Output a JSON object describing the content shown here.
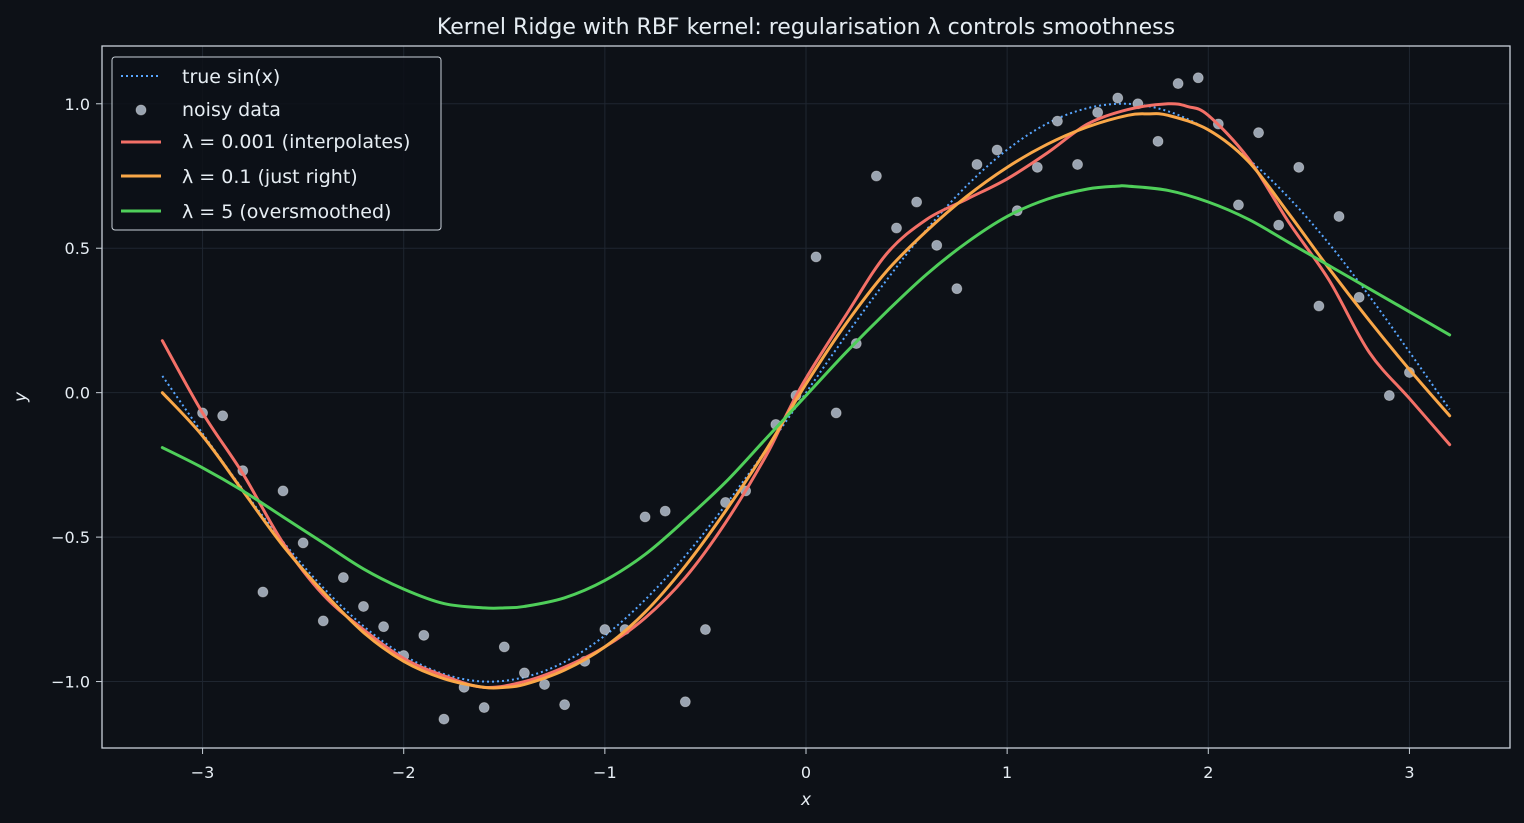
{
  "chart_data": {
    "type": "line",
    "title": "Kernel Ridge with RBF kernel: regularisation λ controls smoothness",
    "xlabel": "x",
    "ylabel": "y",
    "xlim": [
      -3.5,
      3.5
    ],
    "ylim": [
      -1.23,
      1.2
    ],
    "xticks": [
      -3,
      -2,
      -1,
      0,
      1,
      2,
      3
    ],
    "xtick_labels": [
      "−3",
      "−2",
      "−1",
      "0",
      "1",
      "2",
      "3"
    ],
    "yticks": [
      -1.0,
      -0.5,
      0.0,
      0.5,
      1.0
    ],
    "ytick_labels": [
      "−1.0",
      "−0.5",
      "0.0",
      "0.5",
      "1.0"
    ],
    "grid": true,
    "legend_position": "top-left",
    "colors": {
      "background": "#0d1117",
      "axes_edge": "#c9d1d9",
      "grid": "#1f2630",
      "true": "#58a6ff",
      "scatter": "#9aa4b1",
      "lam_small": "#f47067",
      "lam_mid": "#f9a748",
      "lam_large": "#4fcf5a"
    },
    "series": [
      {
        "key": "true",
        "name": "true sin(x)",
        "style": "dotted",
        "x": [
          -3.2,
          -3.0,
          -2.8,
          -2.6,
          -2.4,
          -2.2,
          -2.0,
          -1.8,
          -1.6,
          -1.4,
          -1.2,
          -1.0,
          -0.8,
          -0.6,
          -0.4,
          -0.2,
          0.0,
          0.2,
          0.4,
          0.6,
          0.8,
          1.0,
          1.2,
          1.4,
          1.6,
          1.8,
          2.0,
          2.2,
          2.4,
          2.6,
          2.8,
          3.0,
          3.2
        ],
        "y": [
          0.058,
          -0.141,
          -0.335,
          -0.516,
          -0.675,
          -0.808,
          -0.909,
          -0.974,
          -1.0,
          -0.985,
          -0.932,
          -0.841,
          -0.717,
          -0.565,
          -0.389,
          -0.199,
          0.0,
          0.199,
          0.389,
          0.565,
          0.717,
          0.841,
          0.932,
          0.985,
          1.0,
          0.974,
          0.909,
          0.808,
          0.675,
          0.516,
          0.335,
          0.141,
          -0.058
        ]
      },
      {
        "key": "lam_small",
        "name": "λ = 0.001 (interpolates)",
        "style": "solid",
        "x": [
          -3.2,
          -3.0,
          -2.8,
          -2.6,
          -2.4,
          -2.2,
          -2.0,
          -1.8,
          -1.6,
          -1.4,
          -1.2,
          -1.0,
          -0.8,
          -0.6,
          -0.4,
          -0.2,
          -0.1,
          0.0,
          0.2,
          0.4,
          0.6,
          0.8,
          1.0,
          1.2,
          1.4,
          1.6,
          1.8,
          1.9,
          2.0,
          2.2,
          2.4,
          2.6,
          2.8,
          3.0,
          3.2
        ],
        "y": [
          0.18,
          -0.07,
          -0.28,
          -0.52,
          -0.7,
          -0.82,
          -0.92,
          -0.98,
          -1.02,
          -1.0,
          -0.95,
          -0.88,
          -0.78,
          -0.64,
          -0.45,
          -0.22,
          -0.08,
          0.05,
          0.27,
          0.48,
          0.6,
          0.67,
          0.74,
          0.83,
          0.93,
          0.98,
          1.0,
          0.99,
          0.96,
          0.81,
          0.59,
          0.39,
          0.14,
          -0.02,
          -0.18
        ]
      },
      {
        "key": "lam_mid",
        "name": "λ = 0.1 (just right)",
        "style": "solid",
        "x": [
          -3.2,
          -3.0,
          -2.8,
          -2.6,
          -2.4,
          -2.2,
          -2.0,
          -1.8,
          -1.6,
          -1.5,
          -1.4,
          -1.2,
          -1.0,
          -0.8,
          -0.6,
          -0.4,
          -0.2,
          0.0,
          0.2,
          0.4,
          0.6,
          0.8,
          1.0,
          1.2,
          1.4,
          1.6,
          1.7,
          1.8,
          2.0,
          2.2,
          2.4,
          2.6,
          2.8,
          3.0,
          3.2
        ],
        "y": [
          0.0,
          -0.15,
          -0.34,
          -0.53,
          -0.69,
          -0.83,
          -0.93,
          -0.99,
          -1.02,
          -1.02,
          -1.01,
          -0.96,
          -0.88,
          -0.76,
          -0.6,
          -0.41,
          -0.2,
          0.03,
          0.24,
          0.42,
          0.56,
          0.68,
          0.78,
          0.86,
          0.92,
          0.96,
          0.965,
          0.96,
          0.91,
          0.8,
          0.62,
          0.43,
          0.25,
          0.08,
          -0.08
        ]
      },
      {
        "key": "lam_large",
        "name": "λ = 5 (oversmoothed)",
        "style": "solid",
        "x": [
          -3.2,
          -3.0,
          -2.8,
          -2.6,
          -2.4,
          -2.2,
          -2.0,
          -1.8,
          -1.6,
          -1.5,
          -1.4,
          -1.2,
          -1.0,
          -0.8,
          -0.6,
          -0.4,
          -0.2,
          0.0,
          0.2,
          0.4,
          0.6,
          0.8,
          1.0,
          1.2,
          1.4,
          1.55,
          1.6,
          1.8,
          2.0,
          2.2,
          2.4,
          2.6,
          2.8,
          3.0,
          3.2
        ],
        "y": [
          -0.19,
          -0.26,
          -0.34,
          -0.43,
          -0.52,
          -0.61,
          -0.68,
          -0.73,
          -0.745,
          -0.745,
          -0.74,
          -0.71,
          -0.65,
          -0.56,
          -0.44,
          -0.31,
          -0.16,
          -0.01,
          0.14,
          0.28,
          0.41,
          0.52,
          0.61,
          0.67,
          0.705,
          0.715,
          0.715,
          0.7,
          0.66,
          0.6,
          0.52,
          0.44,
          0.36,
          0.28,
          0.2
        ]
      }
    ],
    "scatter": {
      "name": "noisy data",
      "points": [
        [
          -3.0,
          -0.07
        ],
        [
          -2.9,
          -0.08
        ],
        [
          -2.8,
          -0.27
        ],
        [
          -2.7,
          -0.69
        ],
        [
          -2.6,
          -0.34
        ],
        [
          -2.5,
          -0.52
        ],
        [
          -2.4,
          -0.79
        ],
        [
          -2.3,
          -0.64
        ],
        [
          -2.2,
          -0.74
        ],
        [
          -2.1,
          -0.81
        ],
        [
          -2.0,
          -0.91
        ],
        [
          -1.9,
          -0.84
        ],
        [
          -1.8,
          -1.13
        ],
        [
          -1.7,
          -1.02
        ],
        [
          -1.6,
          -1.09
        ],
        [
          -1.5,
          -0.88
        ],
        [
          -1.4,
          -0.97
        ],
        [
          -1.3,
          -1.01
        ],
        [
          -1.2,
          -1.08
        ],
        [
          -1.1,
          -0.93
        ],
        [
          -1.0,
          -0.82
        ],
        [
          -0.9,
          -0.82
        ],
        [
          -0.8,
          -0.43
        ],
        [
          -0.7,
          -0.41
        ],
        [
          -0.6,
          -1.07
        ],
        [
          -0.5,
          -0.82
        ],
        [
          -0.4,
          -0.38
        ],
        [
          -0.3,
          -0.34
        ],
        [
          -0.15,
          -0.11
        ],
        [
          -0.05,
          -0.01
        ],
        [
          0.05,
          0.47
        ],
        [
          0.15,
          -0.07
        ],
        [
          0.25,
          0.17
        ],
        [
          0.35,
          0.75
        ],
        [
          0.45,
          0.57
        ],
        [
          0.55,
          0.66
        ],
        [
          0.65,
          0.51
        ],
        [
          0.75,
          0.36
        ],
        [
          0.85,
          0.79
        ],
        [
          0.95,
          0.84
        ],
        [
          1.05,
          0.63
        ],
        [
          1.15,
          0.78
        ],
        [
          1.25,
          0.94
        ],
        [
          1.35,
          0.79
        ],
        [
          1.45,
          0.97
        ],
        [
          1.55,
          1.02
        ],
        [
          1.65,
          1.0
        ],
        [
          1.75,
          0.87
        ],
        [
          1.85,
          1.07
        ],
        [
          1.95,
          1.09
        ],
        [
          2.05,
          0.93
        ],
        [
          2.15,
          0.65
        ],
        [
          2.25,
          0.9
        ],
        [
          2.35,
          0.58
        ],
        [
          2.45,
          0.78
        ],
        [
          2.55,
          0.3
        ],
        [
          2.65,
          0.61
        ],
        [
          2.75,
          0.33
        ],
        [
          2.9,
          -0.01
        ],
        [
          3.0,
          0.07
        ]
      ]
    },
    "legend_labels": {
      "true": "true sin(x)",
      "scatter": "noisy data",
      "lam_small": "λ = 0.001 (interpolates)",
      "lam_mid": "λ = 0.1 (just right)",
      "lam_large": "λ = 5 (oversmoothed)"
    }
  }
}
